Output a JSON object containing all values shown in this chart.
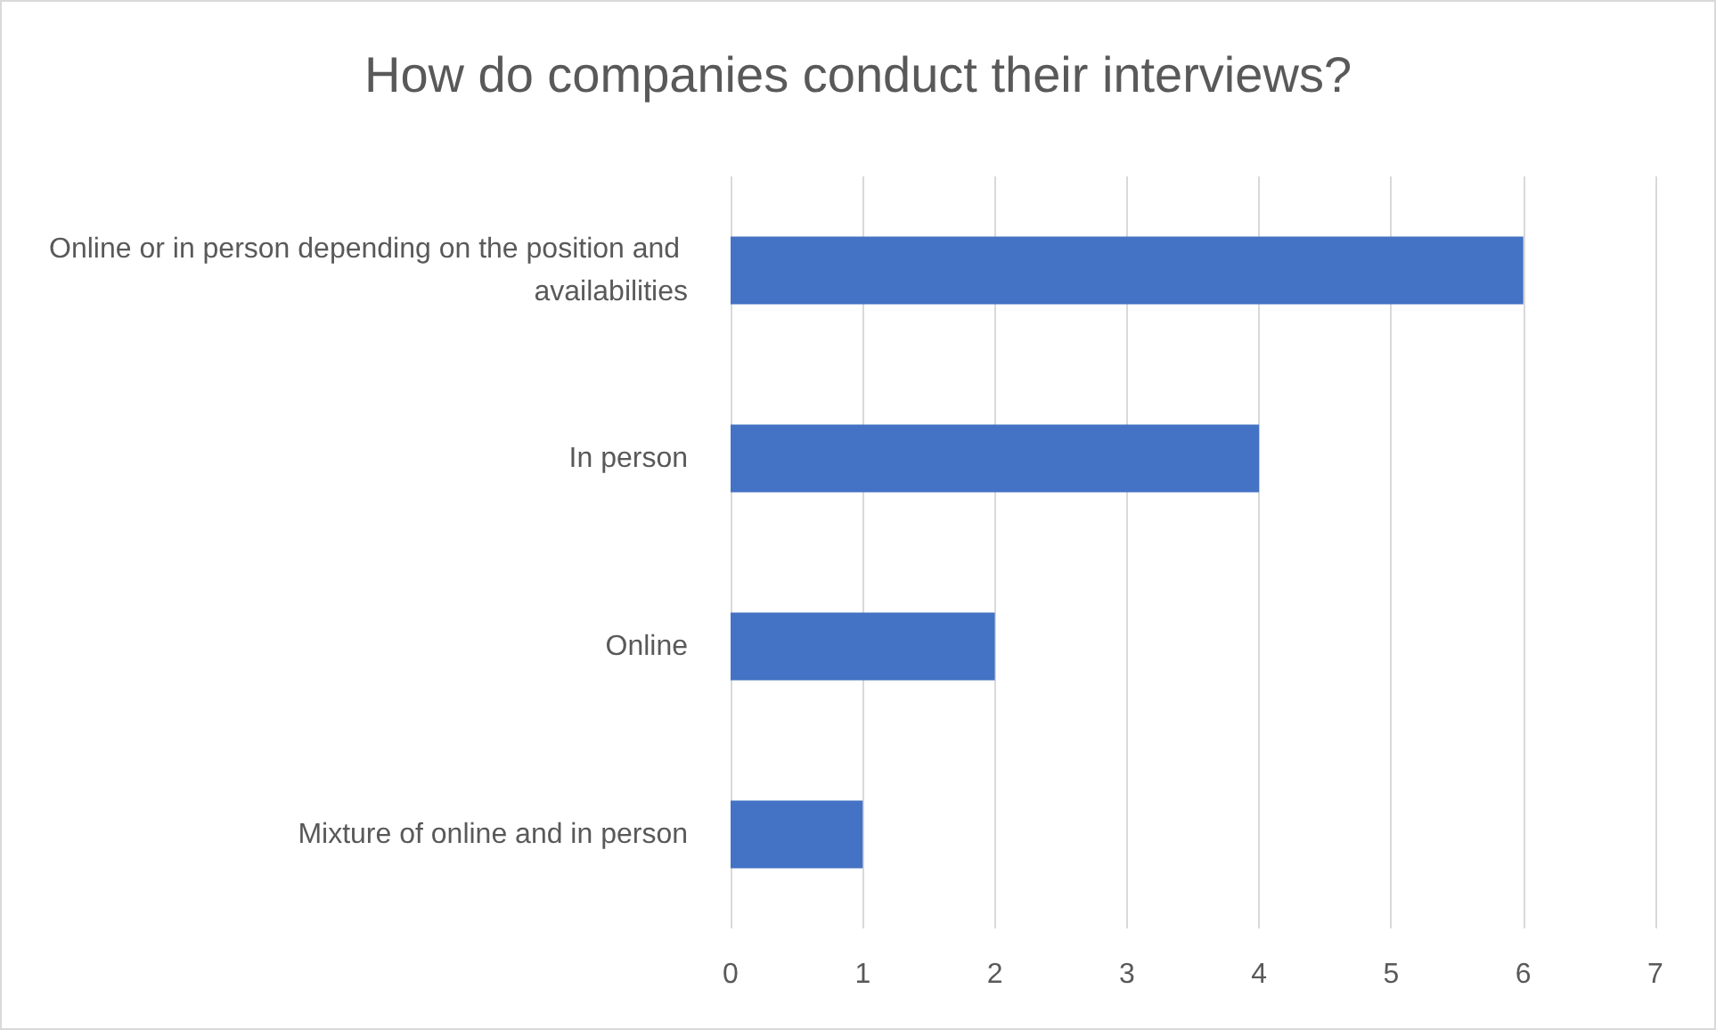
{
  "chart_data": {
    "type": "bar",
    "orientation": "horizontal",
    "title": "How do companies conduct their interviews?",
    "categories": [
      "Online or in person depending on the position and availabilities",
      "In person",
      "Online",
      "Mixture of online and in person"
    ],
    "values": [
      6,
      4,
      2,
      1
    ],
    "color": "#4472c4",
    "xlim": [
      0,
      7
    ],
    "xticks": [
      0,
      1,
      2,
      3,
      4,
      5,
      6,
      7
    ],
    "grid": "x"
  }
}
